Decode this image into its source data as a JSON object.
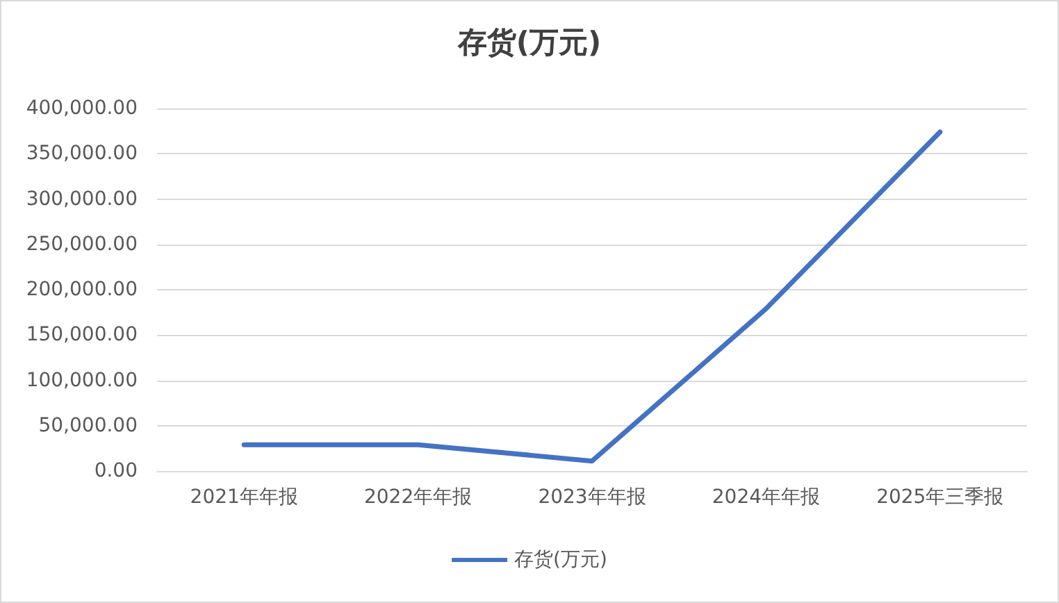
{
  "chart_data": {
    "type": "line",
    "title": "存货(万元)",
    "categories": [
      "2021年年报",
      "2022年年报",
      "2023年年报",
      "2024年年报",
      "2025年三季报"
    ],
    "series": [
      {
        "name": "存货(万元)",
        "color": "#4472c4",
        "values": [
          29000,
          29000,
          11000,
          179000,
          374000
        ]
      }
    ],
    "ylim": [
      0,
      400000
    ],
    "yticks": [
      {
        "value": 0,
        "label": "0.00"
      },
      {
        "value": 50000,
        "label": "50,000.00"
      },
      {
        "value": 100000,
        "label": "100,000.00"
      },
      {
        "value": 150000,
        "label": "150,000.00"
      },
      {
        "value": 200000,
        "label": "200,000.00"
      },
      {
        "value": 250000,
        "label": "250,000.00"
      },
      {
        "value": 300000,
        "label": "300,000.00"
      },
      {
        "value": 350000,
        "label": "350,000.00"
      },
      {
        "value": 400000,
        "label": "400,000.00"
      }
    ],
    "grid": "y",
    "legend": "bottom",
    "marker": "none",
    "line_style": "solid"
  }
}
